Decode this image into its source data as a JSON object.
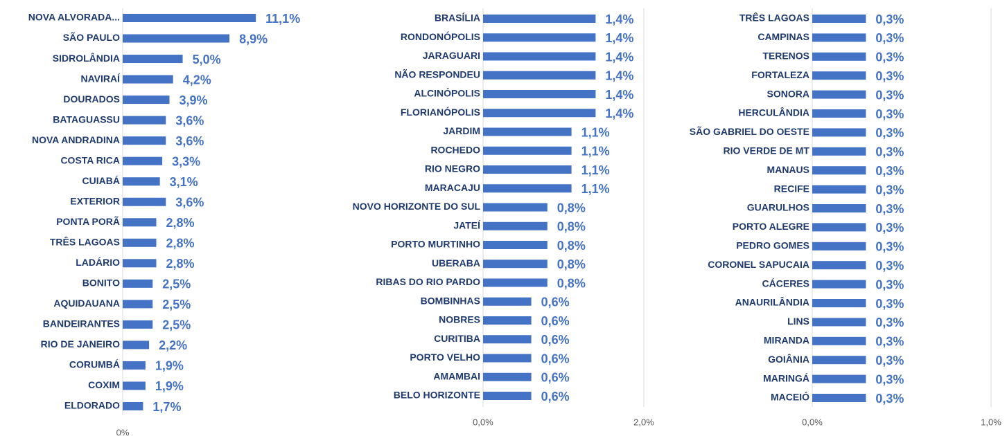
{
  "chart_data": [
    {
      "type": "bar",
      "horizontal": true,
      "color": "#4472c4",
      "grid": false,
      "categories": [
        "NOVA ALVORADA...",
        "SÃO PAULO",
        "SIDROLÂNDIA",
        "NAVIRAÍ",
        "DOURADOS",
        "BATAGUASSU",
        "NOVA ANDRADINA",
        "COSTA RICA",
        "CUIABÁ",
        "EXTERIOR",
        "PONTA PORÃ",
        "TRÊS LAGOAS",
        "LADÁRIO",
        "BONITO",
        "AQUIDAUANA",
        "BANDEIRANTES",
        "RIO DE JANEIRO",
        "CORUMBÁ",
        "COXIM",
        "ELDORADO"
      ],
      "values": [
        11.1,
        8.9,
        5.0,
        4.2,
        3.9,
        3.6,
        3.6,
        3.3,
        3.1,
        3.6,
        2.8,
        2.8,
        2.8,
        2.5,
        2.5,
        2.5,
        2.2,
        1.9,
        1.9,
        1.7
      ],
      "value_labels": [
        "11,1%",
        "8,9%",
        "5,0%",
        "4,2%",
        "3,9%",
        "3,6%",
        "3,6%",
        "3,3%",
        "3,1%",
        "3,6%",
        "2,8%",
        "2,8%",
        "2,8%",
        "2,5%",
        "2,5%",
        "2,5%",
        "2,2%",
        "1,9%",
        "1,9%",
        "1,7%"
      ],
      "xlim": [
        0,
        16
      ],
      "xticks": [
        {
          "value": 0,
          "label": "0%"
        }
      ]
    },
    {
      "type": "bar",
      "horizontal": true,
      "color": "#4472c4",
      "grid": true,
      "categories": [
        "BRASÍLIA",
        "RONDONÓPOLIS",
        "JARAGUARI",
        "NÃO RESPONDEU",
        "ALCINÓPOLIS",
        "FLORIANÓPOLIS",
        "JARDIM",
        "ROCHEDO",
        "RIO NEGRO",
        "MARACAJU",
        "NOVO HORIZONTE DO SUL",
        "JATEÍ",
        "PORTO MURTINHO",
        "UBERABA",
        "RIBAS DO RIO PARDO",
        "BOMBINHAS",
        "NOBRES",
        "CURITIBA",
        "PORTO VELHO",
        "AMAMBAI",
        "BELO HORIZONTE"
      ],
      "values": [
        1.4,
        1.4,
        1.4,
        1.4,
        1.4,
        1.4,
        1.1,
        1.1,
        1.1,
        1.1,
        0.8,
        0.8,
        0.8,
        0.8,
        0.8,
        0.6,
        0.6,
        0.6,
        0.6,
        0.6,
        0.6
      ],
      "value_labels": [
        "1,4%",
        "1,4%",
        "1,4%",
        "1,4%",
        "1,4%",
        "1,4%",
        "1,1%",
        "1,1%",
        "1,1%",
        "1,1%",
        "0,8%",
        "0,8%",
        "0,8%",
        "0,8%",
        "0,8%",
        "0,6%",
        "0,6%",
        "0,6%",
        "0,6%",
        "0,6%",
        "0,6%"
      ],
      "xlim": [
        0,
        2
      ],
      "xticks": [
        {
          "value": 0,
          "label": "0,0%"
        },
        {
          "value": 2,
          "label": "2,0%"
        }
      ]
    },
    {
      "type": "bar",
      "horizontal": true,
      "color": "#4472c4",
      "grid": true,
      "categories": [
        "TRÊS LAGOAS",
        "CAMPINAS",
        "TERENOS",
        "FORTALEZA",
        "SONORA",
        "HERCULÂNDIA",
        "SÃO GABRIEL DO OESTE",
        "RIO VERDE DE MT",
        "MANAUS",
        "RECIFE",
        "GUARULHOS",
        "PORTO ALEGRE",
        "PEDRO GOMES",
        "CORONEL SAPUCAIA",
        "CÁCERES",
        "ANAURILÂNDIA",
        "LINS",
        "MIRANDA",
        "GOIÂNIA",
        "MARINGÁ",
        "MACEIÓ"
      ],
      "values": [
        0.3,
        0.3,
        0.3,
        0.3,
        0.3,
        0.3,
        0.3,
        0.3,
        0.3,
        0.3,
        0.3,
        0.3,
        0.3,
        0.3,
        0.3,
        0.3,
        0.3,
        0.3,
        0.3,
        0.3,
        0.3
      ],
      "value_labels": [
        "0,3%",
        "0,3%",
        "0,3%",
        "0,3%",
        "0,3%",
        "0,3%",
        "0,3%",
        "0,3%",
        "0,3%",
        "0,3%",
        "0,3%",
        "0,3%",
        "0,3%",
        "0,3%",
        "0,3%",
        "0,3%",
        "0,3%",
        "0,3%",
        "0,3%",
        "0,3%",
        "0,3%"
      ],
      "xlim": [
        0,
        1
      ],
      "xticks": [
        {
          "value": 0,
          "label": "0,0%"
        },
        {
          "value": 1,
          "label": "1,0%"
        }
      ]
    }
  ]
}
